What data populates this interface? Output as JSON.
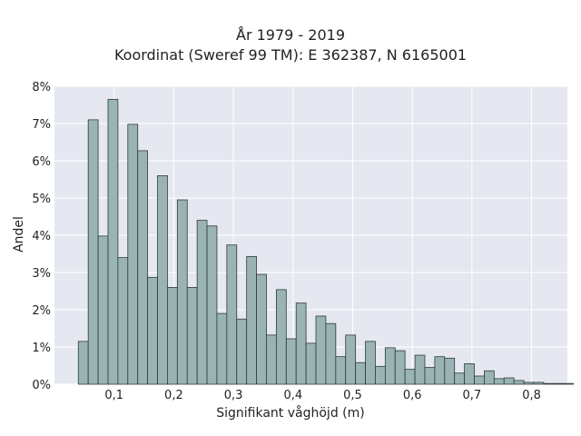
{
  "chart_data": {
    "type": "bar",
    "title_lines": [
      "År 1979 - 2019",
      "Koordinat (Sweref 99 TM): E 362387, N 6165001"
    ],
    "xlabel": "Signifikant våghöjd (m)",
    "ylabel": "Andel",
    "xlim": [
      0.0,
      0.86
    ],
    "ylim": [
      0,
      8
    ],
    "x_ticks": [
      0.1,
      0.2,
      0.3,
      0.4,
      0.5,
      0.6,
      0.7,
      0.8
    ],
    "x_tick_labels": [
      "0,1",
      "0,2",
      "0,3",
      "0,4",
      "0,5",
      "0,6",
      "0,7",
      "0,8"
    ],
    "y_ticks": [
      0,
      1,
      2,
      3,
      4,
      5,
      6,
      7,
      8
    ],
    "y_tick_labels": [
      "0%",
      "1%",
      "2%",
      "3%",
      "4%",
      "5%",
      "6%",
      "7%",
      "8%"
    ],
    "bin_start": 0.04,
    "bin_width": 0.0166,
    "values": [
      1.15,
      7.1,
      3.98,
      7.65,
      3.4,
      6.98,
      6.27,
      2.87,
      5.6,
      2.6,
      4.95,
      2.6,
      4.4,
      4.25,
      1.9,
      3.74,
      1.75,
      3.43,
      2.95,
      1.32,
      2.54,
      1.22,
      2.18,
      1.1,
      1.83,
      1.63,
      0.74,
      1.32,
      0.58,
      1.15,
      0.48,
      0.98,
      0.9,
      0.4,
      0.78,
      0.45,
      0.74,
      0.7,
      0.3,
      0.55,
      0.22,
      0.36,
      0.15,
      0.17,
      0.1,
      0.05,
      0.05,
      0.02,
      0.02,
      0.02
    ],
    "grid": true,
    "colors": {
      "plot_bg": "#e5e8f0",
      "grid": "#ffffff",
      "bar_fill": "#9ab3b4",
      "bar_stroke": "#2f3b3c"
    }
  }
}
